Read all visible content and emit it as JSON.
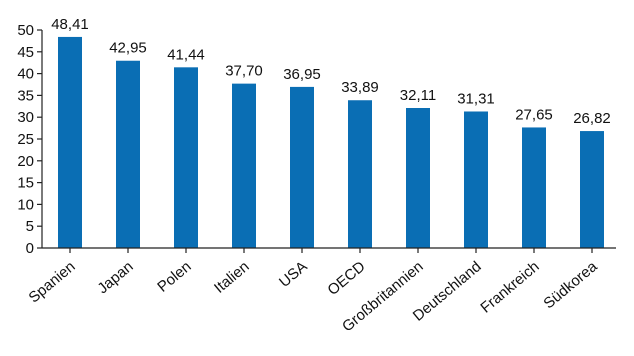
{
  "chart_data": {
    "type": "bar",
    "title": "",
    "xlabel": "",
    "ylabel": "",
    "categories": [
      "Spanien",
      "Japan",
      "Polen",
      "Italien",
      "USA",
      "OECD",
      "Großbritannien",
      "Deutschland",
      "Frankreich",
      "Südkorea"
    ],
    "values": [
      48.41,
      42.95,
      41.44,
      37.7,
      36.95,
      33.89,
      32.11,
      31.31,
      27.65,
      26.82
    ],
    "value_labels": [
      "48,41",
      "42,95",
      "41,44",
      "37,70",
      "36,95",
      "33,89",
      "32,11",
      "31,31",
      "27,65",
      "26,82"
    ],
    "ylim": [
      0,
      50
    ],
    "yticks": [
      0,
      5,
      10,
      15,
      20,
      25,
      30,
      35,
      40,
      45,
      50
    ],
    "grid": false,
    "legend": "none",
    "bar_color": "#0a6eb4"
  }
}
